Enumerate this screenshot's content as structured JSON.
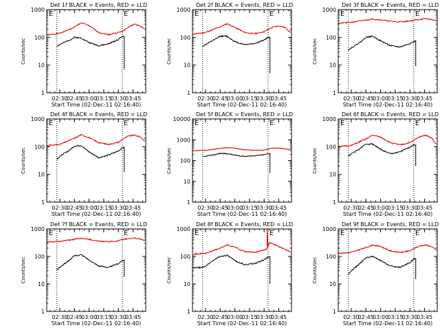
{
  "page": {
    "colors": {
      "events": "#000000",
      "lld": "#e00000",
      "axes": "#000000",
      "background": "#ffffff"
    }
  },
  "panels": [
    {
      "title": "Det 1f BLACK = Events, RED = LLD",
      "xticks": [
        "02:30",
        "02:45",
        "03:00",
        "03:15",
        "03:30",
        "03:45"
      ],
      "xlabel": "Start Time (02-Dec-11 02:16:40)",
      "ylabel": "Counts/sec",
      "markers": [
        "E",
        "E"
      ]
    },
    {
      "title": "Det 2f BLACK = Events, RED = LLD",
      "xticks": [
        "02:30",
        "02:45",
        "03:00",
        "03:15",
        "03:30",
        "03:45"
      ],
      "xlabel": "Start Time (02-Dec-11 02:16:40)",
      "ylabel": "Counts/sec",
      "markers": [
        "E",
        "E"
      ]
    },
    {
      "title": "Det 3f BLACK = Events, RED = LLD",
      "xticks": [
        "02:30",
        "02:45",
        "03:00",
        "03:15",
        "03:30",
        "03:45"
      ],
      "xlabel": "Start Time (02-Dec-11 02:16:40)",
      "ylabel": "Counts/sec",
      "markers": [
        "E",
        "E"
      ]
    },
    {
      "title": "Det 4f BLACK = Events, RED = LLD",
      "xticks": [
        "02:30",
        "02:45",
        "03:00",
        "03:15",
        "03:30",
        "03:45"
      ],
      "xlabel": "Start Time (02-Dec-11 02:16:40)",
      "ylabel": "Counts/sec",
      "markers": [
        "E",
        "E"
      ]
    },
    {
      "title": "Det 5f BLACK = Events, RED = LLD",
      "xticks": [
        "02:30",
        "02:45",
        "03:00",
        "03:15",
        "03:30",
        "03:45"
      ],
      "xlabel": "Start Time (02-Dec-11 02:16:40)",
      "ylabel": "Counts/sec",
      "markers": [
        "E",
        "E"
      ]
    },
    {
      "title": "Det 6f BLACK = Events, RED = LLD",
      "xticks": [
        "02:30",
        "02:45",
        "03:00",
        "03:15",
        "03:30",
        "03:45"
      ],
      "xlabel": "Start Time (02-Dec-11 02:16:40)",
      "ylabel": "Counts/sec",
      "markers": [
        "E",
        "E"
      ]
    },
    {
      "title": "Det 7f BLACK = Events, RED = LLD",
      "xticks": [
        "02:30",
        "02:45",
        "03:00",
        "03:15",
        "03:30",
        "03:45"
      ],
      "xlabel": "Start Time (02-Dec-11 02:16:40)",
      "ylabel": "Counts/sec",
      "markers": [
        "E",
        "E"
      ]
    },
    {
      "title": "Det 8f BLACK = Events, RED = LLD",
      "xticks": [
        "02:30",
        "02:45",
        "03:00",
        "03:15",
        "03:30",
        "03:45"
      ],
      "xlabel": "Start Time (02-Dec-11 02:16:40)",
      "ylabel": "Counts/sec",
      "markers": [
        "E",
        "E"
      ]
    },
    {
      "title": "Det 9f BLACK = Events, RED = LLD",
      "xticks": [
        "02:30",
        "02:45",
        "03:00",
        "03:15",
        "03:30",
        "03:45"
      ],
      "xlabel": "Start Time (02-Dec-11 02:16:40)",
      "ylabel": "Counts/sec",
      "markers": [
        "E",
        "E"
      ]
    }
  ],
  "chart_data": [
    {
      "type": "line",
      "title": "Det 1f BLACK = Events, RED = LLD",
      "xlabel": "Start Time (02-Dec-11 02:16:40)",
      "ylabel": "Counts/sec",
      "ylog": true,
      "ylim": [
        1,
        1000
      ],
      "yticks": [
        "1",
        "10",
        "100",
        "1000"
      ],
      "xlim": [
        "02:16:40",
        "03:58:00"
      ],
      "xticks": [
        "02:30",
        "02:45",
        "03:00",
        "03:15",
        "03:30",
        "03:45"
      ],
      "dotted_lines": [
        "02:27",
        "03:34"
      ],
      "series": [
        {
          "name": "LLD",
          "color": "red",
          "x": [
            "02:16:40",
            "02:30",
            "02:45",
            "02:52",
            "03:00",
            "03:10",
            "03:20",
            "03:30",
            "03:35",
            "03:40",
            "03:46",
            "03:52",
            "03:57"
          ],
          "y": [
            120,
            140,
            230,
            340,
            260,
            150,
            125,
            150,
            170,
            230,
            300,
            260,
            200
          ]
        },
        {
          "name": "Events",
          "color": "black",
          "x": [
            "02:27",
            "02:30",
            "02:40",
            "02:45",
            "02:52",
            "03:00",
            "03:10",
            "03:20",
            "03:30",
            "03:34",
            "03:36",
            "03:36"
          ],
          "y": [
            48,
            55,
            80,
            100,
            95,
            65,
            50,
            58,
            85,
            110,
            105,
            7
          ]
        }
      ]
    },
    {
      "type": "line",
      "title": "Det 2f BLACK = Events, RED = LLD",
      "xlabel": "Start Time (02-Dec-11 02:16:40)",
      "ylabel": "Counts/sec",
      "ylog": true,
      "ylim": [
        1,
        1000
      ],
      "yticks": [
        "1",
        "10",
        "100",
        "1000"
      ],
      "xlim": [
        "02:16:40",
        "03:58:00"
      ],
      "xticks": [
        "02:30",
        "02:45",
        "03:00",
        "03:15",
        "03:30",
        "03:45"
      ],
      "dotted_lines": [
        "02:27",
        "03:34"
      ],
      "series": [
        {
          "name": "LLD",
          "color": "red",
          "x": [
            "02:16:40",
            "02:30",
            "02:45",
            "02:52",
            "03:00",
            "03:10",
            "03:20",
            "03:30",
            "03:35",
            "03:40",
            "03:46",
            "03:52",
            "03:57"
          ],
          "y": [
            130,
            150,
            240,
            310,
            230,
            150,
            135,
            160,
            200,
            240,
            260,
            220,
            150
          ]
        },
        {
          "name": "Events",
          "color": "black",
          "x": [
            "02:27",
            "02:30",
            "02:40",
            "02:45",
            "02:52",
            "03:00",
            "03:10",
            "03:20",
            "03:30",
            "03:34",
            "03:36",
            "03:36"
          ],
          "y": [
            48,
            55,
            85,
            110,
            110,
            70,
            55,
            60,
            80,
            100,
            100,
            5
          ]
        }
      ]
    },
    {
      "type": "line",
      "title": "Det 3f BLACK = Events, RED = LLD",
      "xlabel": "Start Time (02-Dec-11 02:16:40)",
      "ylabel": "Counts/sec",
      "ylog": true,
      "ylim": [
        1,
        1000
      ],
      "yticks": [
        "1",
        "10",
        "100",
        "1000"
      ],
      "xlim": [
        "02:16:40",
        "03:58:00"
      ],
      "xticks": [
        "02:30",
        "02:45",
        "03:00",
        "03:15",
        "03:30",
        "03:45"
      ],
      "dotted_lines": [
        "02:27",
        "03:34"
      ],
      "series": [
        {
          "name": "LLD",
          "color": "red",
          "x": [
            "02:16:40",
            "02:30",
            "02:45",
            "02:52",
            "03:00",
            "03:10",
            "03:20",
            "03:30",
            "03:35",
            "03:40",
            "03:46",
            "03:52",
            "03:57"
          ],
          "y": [
            320,
            350,
            420,
            460,
            430,
            380,
            360,
            390,
            420,
            440,
            470,
            440,
            400
          ]
        },
        {
          "name": "Events",
          "color": "black",
          "x": [
            "02:27",
            "02:30",
            "02:40",
            "02:45",
            "02:52",
            "03:00",
            "03:10",
            "03:20",
            "03:30",
            "03:34",
            "03:36",
            "03:36"
          ],
          "y": [
            35,
            42,
            70,
            100,
            110,
            75,
            50,
            45,
            60,
            70,
            75,
            9
          ]
        }
      ]
    },
    {
      "type": "line",
      "title": "Det 4f BLACK = Events, RED = LLD",
      "xlabel": "Start Time (02-Dec-11 02:16:40)",
      "ylabel": "Counts/sec",
      "ylog": true,
      "ylim": [
        1,
        1000
      ],
      "yticks": [
        "1",
        "10",
        "100",
        "1000"
      ],
      "xlim": [
        "02:16:40",
        "03:58:00"
      ],
      "xticks": [
        "02:30",
        "02:45",
        "03:00",
        "03:15",
        "03:30",
        "03:45"
      ],
      "dotted_lines": [
        "02:27",
        "03:34"
      ],
      "series": [
        {
          "name": "LLD",
          "color": "red",
          "x": [
            "02:16:40",
            "02:30",
            "02:45",
            "02:52",
            "03:00",
            "03:10",
            "03:20",
            "03:30",
            "03:35",
            "03:40",
            "03:46",
            "03:52",
            "03:57"
          ],
          "y": [
            110,
            120,
            200,
            270,
            210,
            140,
            120,
            145,
            190,
            240,
            260,
            230,
            160
          ]
        },
        {
          "name": "Events",
          "color": "black",
          "x": [
            "02:27",
            "02:30",
            "02:40",
            "02:45",
            "02:52",
            "03:00",
            "03:10",
            "03:20",
            "03:30",
            "03:34",
            "03:36",
            "03:36"
          ],
          "y": [
            35,
            45,
            75,
            105,
            110,
            65,
            40,
            50,
            70,
            90,
            95,
            12
          ]
        }
      ]
    },
    {
      "type": "line",
      "title": "Det 5f BLACK = Events, RED = LLD",
      "xlabel": "Start Time (02-Dec-11 02:16:40)",
      "ylabel": "Counts/sec",
      "ylog": true,
      "ylim": [
        1,
        10000
      ],
      "yticks": [
        "1",
        "10",
        "100",
        "1000",
        "10000"
      ],
      "xlim": [
        "02:16:40",
        "03:58:00"
      ],
      "xticks": [
        "02:30",
        "02:45",
        "03:00",
        "03:15",
        "03:30",
        "03:45"
      ],
      "dotted_lines": [
        "02:27",
        "03:34"
      ],
      "series": [
        {
          "name": "LLD",
          "color": "red",
          "x": [
            "02:16:40",
            "02:30",
            "02:45",
            "02:52",
            "03:00",
            "03:10",
            "03:20",
            "03:30",
            "03:35",
            "03:40",
            "03:46",
            "03:52",
            "03:57"
          ],
          "y": [
            300,
            310,
            380,
            420,
            390,
            330,
            310,
            320,
            360,
            400,
            390,
            360,
            330
          ]
        },
        {
          "name": "Events",
          "color": "black",
          "x": [
            "02:27",
            "02:30",
            "02:40",
            "02:45",
            "02:52",
            "03:00",
            "03:10",
            "03:20",
            "03:30",
            "03:34",
            "03:36",
            "03:36"
          ],
          "y": [
            150,
            160,
            195,
            220,
            215,
            180,
            160,
            170,
            190,
            210,
            215,
            25
          ]
        }
      ]
    },
    {
      "type": "line",
      "title": "Det 6f BLACK = Events, RED = LLD",
      "xlabel": "Start Time (02-Dec-11 02:16:40)",
      "ylabel": "Counts/sec",
      "ylog": true,
      "ylim": [
        1,
        1000
      ],
      "yticks": [
        "1",
        "10",
        "100",
        "1000"
      ],
      "xlim": [
        "02:16:40",
        "03:58:00"
      ],
      "xticks": [
        "02:30",
        "02:45",
        "03:00",
        "03:15",
        "03:30",
        "03:45"
      ],
      "dotted_lines": [
        "02:27",
        "03:34"
      ],
      "series": [
        {
          "name": "LLD",
          "color": "red",
          "x": [
            "02:16:40",
            "02:30",
            "02:45",
            "02:52",
            "03:00",
            "03:10",
            "03:20",
            "03:30",
            "03:35",
            "03:40",
            "03:46",
            "03:52",
            "03:57"
          ],
          "y": [
            100,
            110,
            190,
            260,
            220,
            140,
            115,
            140,
            180,
            230,
            260,
            210,
            120
          ]
        },
        {
          "name": "Events",
          "color": "black",
          "x": [
            "02:27",
            "02:30",
            "02:40",
            "02:45",
            "02:52",
            "03:00",
            "03:10",
            "03:20",
            "03:30",
            "03:34",
            "03:36",
            "03:36"
          ],
          "y": [
            45,
            55,
            90,
            125,
            125,
            80,
            55,
            65,
            95,
            120,
            115,
            20
          ]
        }
      ]
    },
    {
      "type": "line",
      "title": "Det 7f BLACK = Events, RED = LLD",
      "xlabel": "Start Time (02-Dec-11 02:16:40)",
      "ylabel": "Counts/sec",
      "ylog": true,
      "ylim": [
        1,
        1000
      ],
      "yticks": [
        "1",
        "10",
        "100",
        "1000"
      ],
      "xlim": [
        "02:16:40",
        "03:58:00"
      ],
      "xticks": [
        "02:30",
        "02:45",
        "03:00",
        "03:15",
        "03:30",
        "03:45"
      ],
      "dotted_lines": [
        "02:27",
        "03:34"
      ],
      "series": [
        {
          "name": "LLD",
          "color": "red",
          "x": [
            "02:16:40",
            "02:30",
            "02:45",
            "02:52",
            "03:00",
            "03:10",
            "03:20",
            "03:30",
            "03:35",
            "03:40",
            "03:46",
            "03:52",
            "03:57"
          ],
          "y": [
            330,
            350,
            420,
            460,
            420,
            360,
            340,
            370,
            410,
            440,
            470,
            430,
            380
          ]
        },
        {
          "name": "Events",
          "color": "black",
          "x": [
            "02:27",
            "02:30",
            "02:40",
            "02:45",
            "02:52",
            "03:00",
            "03:10",
            "03:20",
            "03:30",
            "03:34",
            "03:36",
            "03:36"
          ],
          "y": [
            32,
            40,
            75,
            105,
            115,
            75,
            45,
            40,
            55,
            70,
            75,
            18
          ]
        }
      ]
    },
    {
      "type": "line",
      "title": "Det 8f BLACK = Events, RED = LLD",
      "xlabel": "Start Time (02-Dec-11 02:16:40)",
      "ylabel": "Counts/sec",
      "ylog": true,
      "ylim": [
        1,
        1000
      ],
      "yticks": [
        "1",
        "10",
        "100",
        "1000"
      ],
      "xlim": [
        "02:16:40",
        "03:58:00"
      ],
      "xticks": [
        "02:30",
        "02:45",
        "03:00",
        "03:15",
        "03:30",
        "03:45"
      ],
      "dotted_lines": [
        "02:27",
        "03:34"
      ],
      "series": [
        {
          "name": "LLD",
          "color": "red",
          "x": [
            "02:16:40",
            "02:30",
            "02:45",
            "02:52",
            "03:00",
            "03:10",
            "03:20",
            "03:30",
            "03:33",
            "03:33",
            "03:34",
            "03:35",
            "03:40",
            "03:46",
            "03:52",
            "03:57"
          ],
          "y": [
            120,
            130,
            200,
            260,
            220,
            150,
            140,
            170,
            190,
            1000,
            220,
            320,
            280,
            220,
            180,
            140
          ]
        },
        {
          "name": "Events",
          "color": "black",
          "x": [
            "02:16:40",
            "02:27",
            "02:30",
            "02:40",
            "02:45",
            "02:52",
            "03:00",
            "03:10",
            "03:20",
            "03:30",
            "03:34",
            "03:36",
            "03:36"
          ],
          "y": [
            38,
            40,
            45,
            80,
            100,
            110,
            70,
            50,
            55,
            75,
            95,
            100,
            10
          ]
        }
      ]
    },
    {
      "type": "line",
      "title": "Det 9f BLACK = Events, RED = LLD",
      "xlabel": "Start Time (02-Dec-11 02:16:40)",
      "ylabel": "Counts/sec",
      "ylog": true,
      "ylim": [
        1,
        1000
      ],
      "yticks": [
        "1",
        "10",
        "100",
        "1000"
      ],
      "xlim": [
        "02:16:40",
        "03:58:00"
      ],
      "xticks": [
        "02:30",
        "02:45",
        "03:00",
        "03:15",
        "03:30",
        "03:45"
      ],
      "dotted_lines": [
        "02:27",
        "03:34"
      ],
      "series": [
        {
          "name": "LLD",
          "color": "red",
          "x": [
            "02:16:40",
            "02:30",
            "02:45",
            "02:52",
            "03:00",
            "03:10",
            "03:20",
            "03:30",
            "03:35",
            "03:40",
            "03:46",
            "03:52",
            "03:57"
          ],
          "y": [
            130,
            140,
            210,
            260,
            230,
            160,
            140,
            160,
            200,
            240,
            260,
            230,
            170
          ]
        },
        {
          "name": "Events",
          "color": "black",
          "x": [
            "02:27",
            "02:30",
            "02:40",
            "02:45",
            "02:52",
            "03:00",
            "03:10",
            "03:20",
            "03:30",
            "03:34",
            "03:36",
            "03:36"
          ],
          "y": [
            22,
            30,
            60,
            90,
            100,
            70,
            45,
            40,
            60,
            80,
            85,
            15
          ]
        }
      ]
    }
  ]
}
